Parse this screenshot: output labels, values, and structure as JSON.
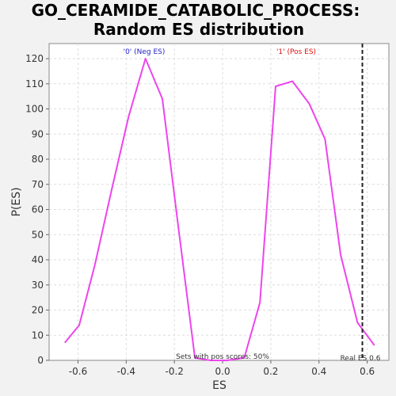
{
  "chart_data": {
    "type": "line",
    "title": [
      "GO_CERAMIDE_CATABOLIC_PROCESS:",
      "Random ES distribution"
    ],
    "xlabel": "ES",
    "ylabel": "P(ES)",
    "xlim": [
      -0.72,
      0.69
    ],
    "ylim": [
      0,
      126
    ],
    "x_ticks": [
      -0.6,
      -0.4,
      -0.2,
      0.0,
      0.2,
      0.4,
      0.6
    ],
    "x_tick_labels": [
      "-0.6",
      "-0.4",
      "-0.2",
      "0.0",
      "0.2",
      "0.4",
      "0.6"
    ],
    "y_ticks": [
      0,
      10,
      20,
      30,
      40,
      50,
      60,
      70,
      80,
      90,
      100,
      110,
      120
    ],
    "y_tick_labels": [
      "0",
      "10",
      "20",
      "30",
      "40",
      "50",
      "60",
      "70",
      "80",
      "90",
      "100",
      "110",
      "120"
    ],
    "grid": true,
    "series": [
      {
        "color": "#ee44ee",
        "x": [
          -0.655,
          -0.595,
          -0.53,
          -0.46,
          -0.39,
          -0.32,
          -0.25,
          -0.185,
          -0.115,
          -0.05,
          0.02,
          0.09,
          0.155,
          0.22,
          0.29,
          0.36,
          0.425,
          0.49,
          0.56,
          0.63
        ],
        "y": [
          7,
          14,
          38,
          68,
          97,
          120,
          104,
          54,
          1,
          0,
          0,
          1,
          23,
          109,
          111,
          102,
          88,
          42,
          15,
          6
        ]
      }
    ],
    "real_es": 0.58,
    "real_es_label": "Real ES 0.6",
    "annotations": {
      "neg_label": "'0' (Neg ES)",
      "pos_label": "'1' (Pos ES)",
      "bottom_note": "Sets with pos scores: 50%"
    },
    "colors": {
      "neg_label": "#2222cc",
      "pos_label": "#dd1111",
      "line": "#ee44ee",
      "grid": "#dddddd",
      "plot_bg": "#ffffff"
    }
  }
}
